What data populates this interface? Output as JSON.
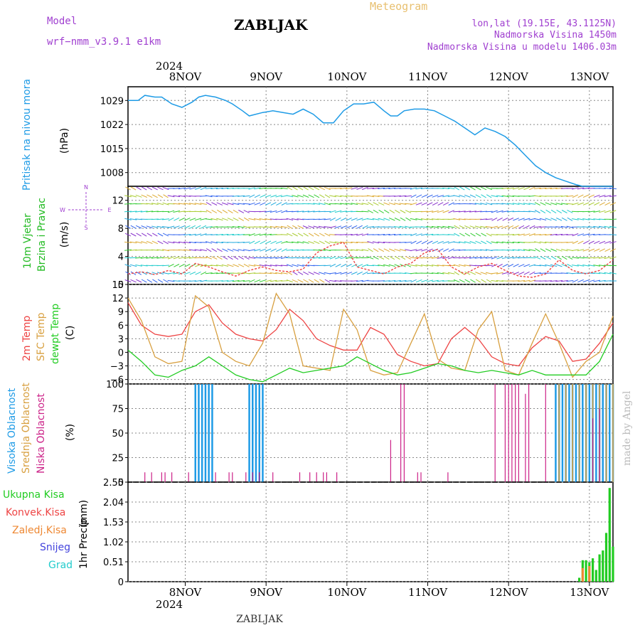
{
  "header": {
    "model_label": "Model",
    "model_name": "wrf−nmm_v3.9.1  e1km",
    "station": "ZABLJAK",
    "product": "Meteogram",
    "coords": "lon,lat (19.15E, 43.1125N)",
    "altitude": "Nadmorska Visina 1450m",
    "model_altitude": "Nadmorska Visina u modelu 1406.03m",
    "watermark": "made by Angel",
    "footer_station": "ZABLJAK"
  },
  "time_axis": {
    "year": "2024",
    "days": [
      "8NOV",
      "9NOV",
      "10NOV",
      "11NOV",
      "12NOV",
      "13NOV"
    ],
    "range_hours": [
      0,
      144
    ],
    "day_ticks_hours": [
      17,
      41,
      65,
      89,
      113,
      137
    ]
  },
  "panels": {
    "pressure": {
      "label": "Pritisak na nivou mora",
      "unit": "(hPa)",
      "ticks": [
        "1029",
        "1022",
        "1015",
        "1008"
      ],
      "color": "#1e9be6"
    },
    "wind": {
      "label1": "10m Vjetar",
      "label2": "Brzina i Pravac",
      "unit": "(m/s)",
      "ticks": [
        "12",
        "8",
        "4",
        "0"
      ],
      "compass_n": "N",
      "compass_w": "W",
      "compass_e": "E",
      "compass_s": "S",
      "color": "#22bb22"
    },
    "temperature": {
      "label1": "2m Temp",
      "label2": "SFC Temp",
      "label3": "dewpt Temp",
      "unit": "(C)",
      "ticks": [
        "15",
        "12",
        "9",
        "6",
        "3",
        "0",
        "−3",
        "−6"
      ],
      "color_2m": "#ee4444",
      "color_sfc": "#d8a040",
      "color_dew": "#22cc22"
    },
    "clouds": {
      "label1": "Visoka Oblacnost",
      "label2": "Srednja Oblacnost",
      "label3": "Niska Oblacnost",
      "unit": "(%)",
      "ticks": [
        "100",
        "75",
        "50",
        "25",
        "0"
      ],
      "color_high": "#1e9be6",
      "color_mid": "#d8a040",
      "color_low": "#cc2288"
    },
    "precip": {
      "legend": [
        "Ukupna Kisa",
        "Konvek.Kisa",
        "Zaledj.Kisa",
        "Snijeg",
        "Grad"
      ],
      "legend_colors": [
        "#22cc22",
        "#ee4444",
        "#ee8833",
        "#4444dd",
        "#22cccc"
      ],
      "label": "1hr Precip",
      "unit": "(mm)",
      "ticks": [
        "2.55",
        "2.04",
        "1.53",
        "1.02",
        "0.51",
        "0"
      ]
    }
  },
  "chart_data": [
    {
      "type": "line",
      "title": "Pritisak na nivou mora",
      "ylabel": "(hPa)",
      "ylim": [
        1004,
        1033
      ],
      "x_unit": "hours",
      "x": [
        0,
        3,
        5,
        8,
        10,
        13,
        16,
        19,
        21,
        23,
        26,
        29,
        31,
        34,
        36,
        40,
        43,
        46,
        49,
        52,
        55,
        58,
        61,
        64,
        67,
        70,
        73,
        76,
        78,
        80,
        82,
        85,
        88,
        91,
        94,
        97,
        100,
        103,
        106,
        109,
        112,
        115,
        118,
        121,
        124,
        127,
        130,
        133,
        135,
        137,
        140,
        142,
        144
      ],
      "y": [
        1029,
        1029,
        1030.5,
        1030,
        1030,
        1028,
        1027,
        1028.5,
        1030,
        1030.5,
        1030,
        1029,
        1028,
        1026,
        1024.5,
        1025.5,
        1026,
        1025.5,
        1025,
        1026.5,
        1025,
        1022.5,
        1022.5,
        1026,
        1028,
        1028,
        1028.5,
        1026,
        1024.5,
        1024.5,
        1026,
        1026.5,
        1026.5,
        1026,
        1024.5,
        1023,
        1021,
        1019,
        1021,
        1020,
        1018.5,
        1016,
        1013,
        1010,
        1008,
        1006.5,
        1005.5,
        1004.5,
        1004,
        1004,
        1004,
        1004,
        1004
      ]
    },
    {
      "type": "line",
      "title": "10m Vjetar Brzina i Pravac",
      "ylabel": "(m/s)",
      "ylim": [
        0,
        14
      ],
      "x": [
        0,
        4,
        8,
        12,
        16,
        20,
        24,
        28,
        32,
        36,
        40,
        44,
        48,
        52,
        56,
        60,
        64,
        68,
        72,
        76,
        80,
        84,
        88,
        92,
        96,
        100,
        104,
        108,
        112,
        116,
        120,
        124,
        128,
        132,
        136,
        140,
        144
      ],
      "y": [
        1.5,
        1.8,
        1.4,
        2.0,
        1.5,
        3.0,
        2.5,
        1.8,
        1.2,
        2.0,
        2.5,
        2.0,
        1.8,
        2.2,
        4.5,
        5.5,
        6.0,
        2.5,
        2.0,
        1.5,
        2.5,
        3.0,
        4.5,
        5.0,
        2.5,
        1.5,
        2.5,
        3.0,
        2.0,
        1.2,
        1.0,
        1.5,
        3.5,
        2.0,
        1.5,
        2.0,
        3.5
      ]
    },
    {
      "type": "line",
      "title": "Temperature",
      "ylabel": "(C)",
      "ylim": [
        -7,
        15
      ],
      "x": [
        0,
        4,
        8,
        12,
        16,
        20,
        24,
        28,
        32,
        36,
        40,
        44,
        48,
        52,
        56,
        60,
        64,
        68,
        72,
        76,
        80,
        84,
        88,
        92,
        96,
        100,
        104,
        108,
        112,
        116,
        120,
        124,
        128,
        132,
        136,
        140,
        144
      ],
      "series": [
        {
          "name": "2m Temp",
          "values": [
            11,
            6,
            4,
            3.5,
            4,
            9,
            10.5,
            6.5,
            4,
            3,
            2.5,
            5,
            9.5,
            7,
            3,
            1.5,
            0.5,
            0.5,
            5.5,
            4,
            -0.5,
            -2,
            -3,
            -2.5,
            3,
            5.5,
            3,
            -1,
            -2.5,
            -3,
            1,
            3.5,
            2.5,
            -2,
            -1.5,
            2,
            6.5
          ]
        },
        {
          "name": "SFC Temp",
          "values": [
            12,
            7,
            -1,
            -2.5,
            -2,
            12.5,
            10,
            0,
            -2,
            -3,
            2,
            13,
            8.5,
            -3,
            -3.5,
            -4,
            9.5,
            5,
            -4,
            -5,
            -4.5,
            2,
            8.5,
            -1.5,
            -3.5,
            -4,
            5,
            9,
            -4,
            -5,
            2,
            8.5,
            2,
            -5.5,
            -2,
            0,
            8
          ]
        },
        {
          "name": "dewpt Temp",
          "values": [
            0.5,
            -2,
            -5,
            -5.5,
            -4,
            -3,
            -1,
            -3,
            -5,
            -6,
            -6.5,
            -5,
            -3.5,
            -4.5,
            -4,
            -3.5,
            -3,
            -1,
            -2.5,
            -4,
            -5,
            -4.5,
            -3.5,
            -2.5,
            -3,
            -4,
            -4.5,
            -4,
            -4.5,
            -5,
            -4,
            -5,
            -5,
            -5,
            -5,
            -2,
            4
          ]
        }
      ]
    },
    {
      "type": "bar",
      "title": "Oblacnost",
      "ylabel": "(%)",
      "ylim": [
        0,
        100
      ],
      "series": [
        {
          "name": "Visoka Oblacnost",
          "x": [
            20,
            21,
            22,
            23,
            24,
            25,
            36,
            37,
            38,
            39,
            40,
            127,
            128,
            129,
            130,
            131,
            132,
            133,
            134,
            135,
            136,
            137,
            138,
            139,
            140,
            141,
            142,
            143,
            144
          ],
          "values": [
            100,
            100,
            100,
            100,
            100,
            100,
            100,
            100,
            100,
            100,
            100,
            100,
            100,
            100,
            100,
            100,
            100,
            100,
            100,
            100,
            100,
            100,
            100,
            100,
            100,
            100,
            100,
            100,
            100
          ]
        },
        {
          "name": "Srednja Oblacnost",
          "x": [
            128,
            130,
            132,
            134,
            136,
            138,
            140,
            142,
            144
          ],
          "values": [
            100,
            100,
            100,
            100,
            100,
            100,
            100,
            100,
            100
          ]
        },
        {
          "name": "Niska Oblacnost",
          "x": [
            5,
            7,
            10,
            11,
            13,
            18,
            26,
            30,
            31,
            35,
            37,
            39,
            43,
            51,
            54,
            56,
            58,
            59,
            62,
            78,
            81,
            82,
            86,
            87,
            95,
            109,
            112,
            113,
            114,
            115,
            116,
            118,
            119,
            124,
            138,
            140
          ],
          "values": [
            10,
            10,
            10,
            10,
            10,
            10,
            10,
            10,
            10,
            10,
            10,
            10,
            10,
            10,
            10,
            10,
            10,
            10,
            10,
            43,
            100,
            100,
            10,
            10,
            10,
            100,
            100,
            100,
            100,
            100,
            100,
            90,
            100,
            100,
            65,
            75
          ]
        }
      ]
    },
    {
      "type": "bar",
      "title": "1hr Precip",
      "ylabel": "(mm)",
      "ylim": [
        0,
        2.55
      ],
      "series": [
        {
          "name": "Ukupna Kisa",
          "x": [
            134,
            135,
            136,
            137,
            138,
            139,
            140,
            141,
            142,
            143,
            144
          ],
          "values": [
            0.1,
            0.55,
            0.55,
            0.5,
            0.6,
            0.3,
            0.7,
            0.8,
            1.25,
            2.4,
            0.9
          ]
        },
        {
          "name": "Zaledj.Kisa",
          "x": [
            135,
            137
          ],
          "values": [
            0.35,
            0.4
          ]
        }
      ]
    }
  ]
}
